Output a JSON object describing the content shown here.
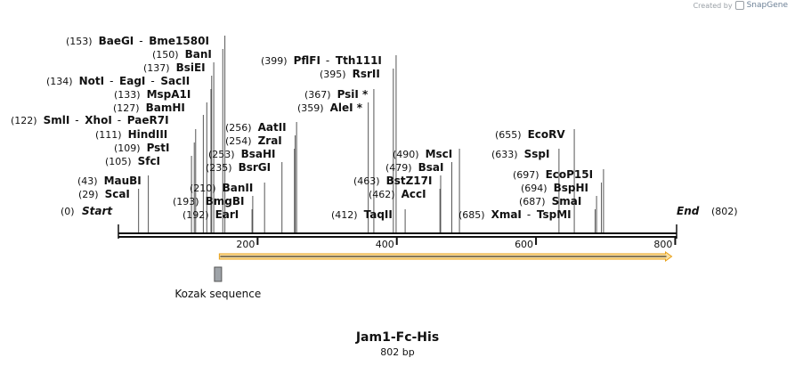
{
  "brand": {
    "prefix": "Created by",
    "name": "SnapGene"
  },
  "map": {
    "title": "Jam1-Fc-His",
    "length_label": "802 bp",
    "start_label": "Start",
    "start_pos": "(0)",
    "end_label": "End",
    "end_pos": "(802)",
    "length": 802,
    "ticks": [
      {
        "value": 200,
        "label": "200"
      },
      {
        "value": 400,
        "label": "400"
      },
      {
        "value": 600,
        "label": "600"
      },
      {
        "value": 800,
        "label": "800"
      }
    ],
    "features": [
      {
        "name": "ORF",
        "type": "orf",
        "start": 145,
        "end": 795,
        "direction": "forward",
        "color": "#f2a40c"
      },
      {
        "name": "Kozak sequence",
        "label": "Kozak sequence",
        "type": "misc",
        "start": 138,
        "end": 148,
        "color": "#9ea3a8"
      }
    ],
    "enzymes": [
      {
        "pos": "(29)",
        "site": 29,
        "names": [
          "ScaI"
        ]
      },
      {
        "pos": "(43)",
        "site": 43,
        "names": [
          "MauBI"
        ]
      },
      {
        "pos": "(105)",
        "site": 105,
        "names": [
          "SfcI"
        ]
      },
      {
        "pos": "(109)",
        "site": 109,
        "names": [
          "PstI"
        ]
      },
      {
        "pos": "(111)",
        "site": 111,
        "names": [
          "HindIII"
        ]
      },
      {
        "pos": "(122)",
        "site": 122,
        "names": [
          "SmlI",
          "XhoI",
          "PaeR7I"
        ]
      },
      {
        "pos": "(127)",
        "site": 127,
        "names": [
          "BamHI"
        ]
      },
      {
        "pos": "(133)",
        "site": 133,
        "names": [
          "MspA1I"
        ]
      },
      {
        "pos": "(134)",
        "site": 134,
        "names": [
          "NotI",
          "EagI",
          "SacII"
        ]
      },
      {
        "pos": "(137)",
        "site": 137,
        "names": [
          "BsiEI"
        ]
      },
      {
        "pos": "(150)",
        "site": 150,
        "names": [
          "BanI"
        ]
      },
      {
        "pos": "(153)",
        "site": 153,
        "names": [
          "BaeGI",
          "Bme1580I"
        ]
      },
      {
        "pos": "(192)",
        "site": 192,
        "names": [
          "EarI"
        ]
      },
      {
        "pos": "(193)",
        "site": 193,
        "names": [
          "BmgBI"
        ]
      },
      {
        "pos": "(210)",
        "site": 210,
        "names": [
          "BanII"
        ]
      },
      {
        "pos": "(235)",
        "site": 235,
        "names": [
          "BsrGI"
        ]
      },
      {
        "pos": "(253)",
        "site": 253,
        "names": [
          "BsaHI"
        ]
      },
      {
        "pos": "(254)",
        "site": 254,
        "names": [
          "ZraI"
        ]
      },
      {
        "pos": "(256)",
        "site": 256,
        "names": [
          "AatII"
        ]
      },
      {
        "pos": "(359)",
        "site": 359,
        "names": [
          "AleI *"
        ]
      },
      {
        "pos": "(367)",
        "site": 367,
        "names": [
          "PsiI *"
        ]
      },
      {
        "pos": "(395)",
        "site": 395,
        "names": [
          "RsrII"
        ]
      },
      {
        "pos": "(399)",
        "site": 399,
        "names": [
          "PflFI",
          "Tth111I"
        ]
      },
      {
        "pos": "(412)",
        "site": 412,
        "names": [
          "TaqII"
        ]
      },
      {
        "pos": "(462)",
        "site": 462,
        "names": [
          "AccI"
        ]
      },
      {
        "pos": "(463)",
        "site": 463,
        "names": [
          "BstZ17I"
        ]
      },
      {
        "pos": "(479)",
        "site": 479,
        "names": [
          "BsaI"
        ]
      },
      {
        "pos": "(490)",
        "site": 490,
        "names": [
          "MscI"
        ]
      },
      {
        "pos": "(633)",
        "site": 633,
        "names": [
          "SspI"
        ]
      },
      {
        "pos": "(655)",
        "site": 655,
        "names": [
          "EcoRV"
        ]
      },
      {
        "pos": "(685)",
        "site": 685,
        "names": [
          "XmaI",
          "TspMI"
        ]
      },
      {
        "pos": "(687)",
        "site": 687,
        "names": [
          "SmaI"
        ]
      },
      {
        "pos": "(694)",
        "site": 694,
        "names": [
          "BspHI"
        ]
      },
      {
        "pos": "(697)",
        "site": 697,
        "names": [
          "EcoP15I"
        ]
      }
    ]
  }
}
